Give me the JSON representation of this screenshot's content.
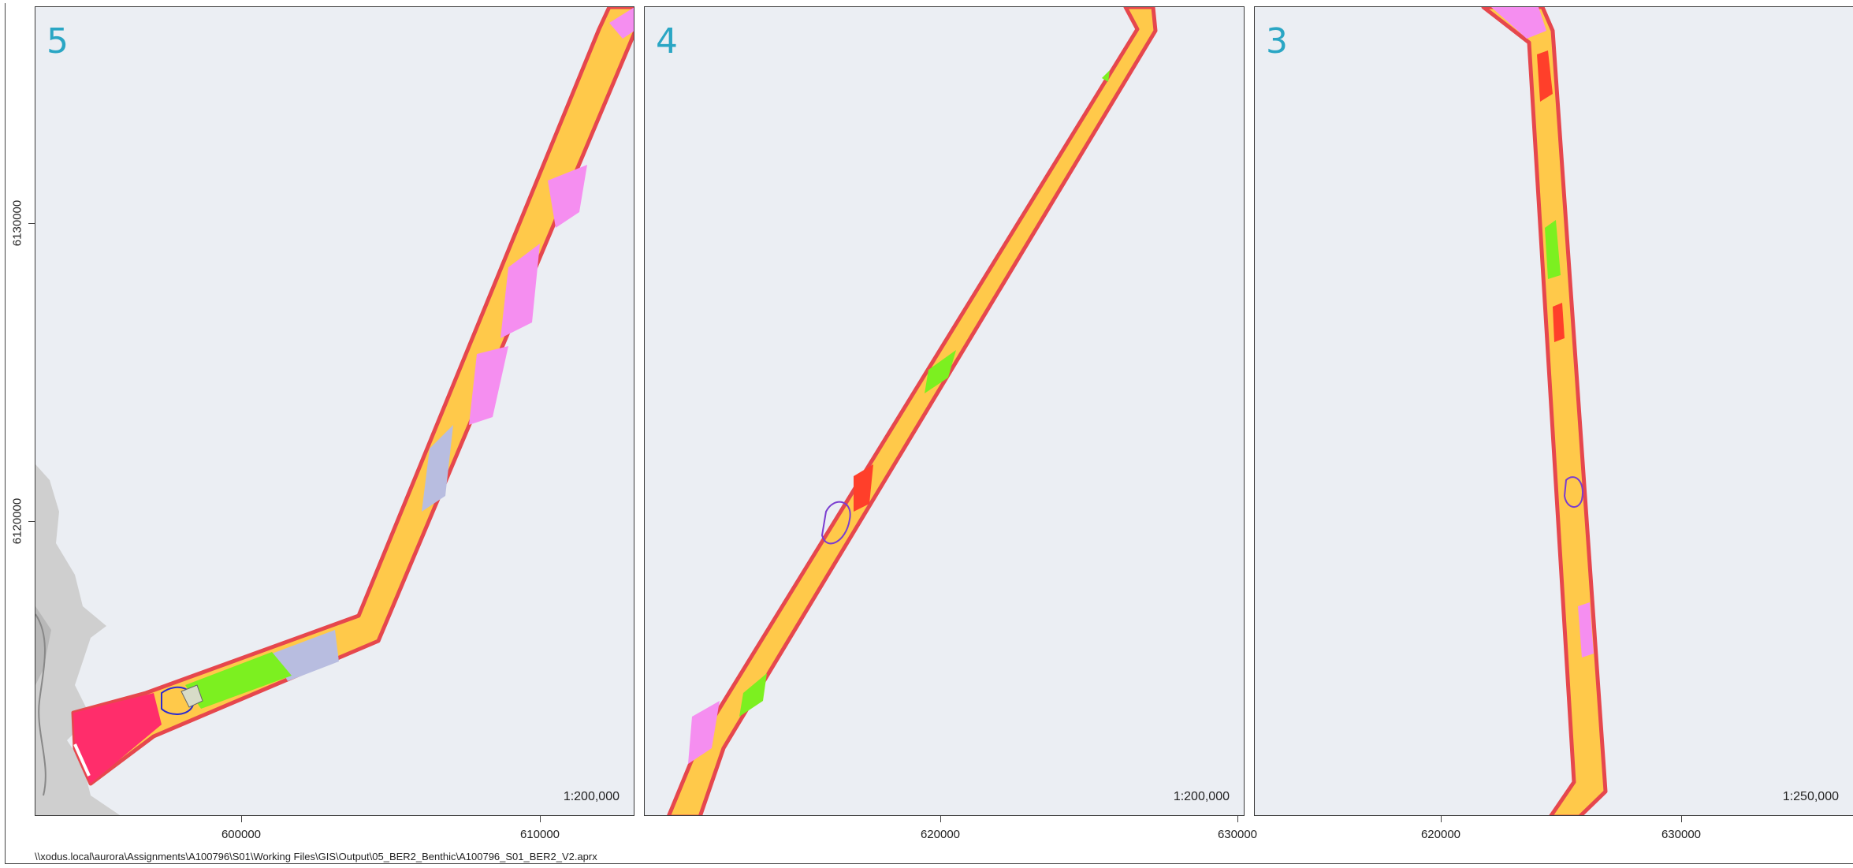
{
  "panels": [
    {
      "number": "5",
      "scale": "1:200,000"
    },
    {
      "number": "4",
      "scale": "1:200,000"
    },
    {
      "number": "3",
      "scale": "1:250,000"
    }
  ],
  "x_axis": {
    "panel5": [
      "600000",
      "610000"
    ],
    "panel4": [
      "620000",
      "630000"
    ],
    "panel3": [
      "620000",
      "630000"
    ]
  },
  "y_axis": [
    "6130000",
    "6120000"
  ],
  "file_path": "\\\\xodus.local\\aurora\\Assignments\\A100796\\S01\\Working Files\\GIS\\Output\\05_BER2_Benthic\\A100796_S01_BER2_V2.aprx",
  "colors": {
    "background": "#ebeef3",
    "corridor_outline": "#e6474d",
    "sand_habitat": "#ffc94a",
    "mixed_habitat": "#f58ef0",
    "coarse_habitat": "#b8bde0",
    "green_habitat": "#7cf020",
    "red_habitat": "#ff3f2a",
    "landfall_habitat": "#ff2d6b",
    "land": "#cfcfcf",
    "panel_number": "#2aa6c4"
  }
}
